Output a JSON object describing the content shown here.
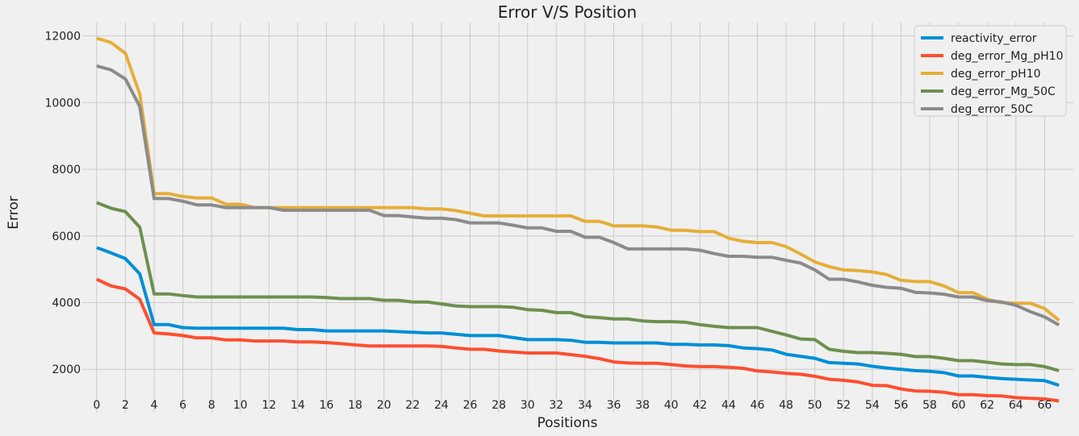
{
  "chart_data": {
    "type": "line",
    "title": "Error V/S Position",
    "xlabel": "Positions",
    "ylabel": "Error",
    "xlim": [
      -1,
      68
    ],
    "ylim": [
      700,
      12400
    ],
    "xticks": [
      0,
      2,
      4,
      6,
      8,
      10,
      12,
      14,
      16,
      18,
      20,
      22,
      24,
      26,
      28,
      30,
      32,
      34,
      36,
      38,
      40,
      42,
      44,
      46,
      48,
      50,
      52,
      54,
      56,
      58,
      60,
      62,
      64,
      66
    ],
    "yticks": [
      2000,
      4000,
      6000,
      8000,
      10000,
      12000
    ],
    "grid": true,
    "legend_position": "top-right",
    "x": [
      0,
      1,
      2,
      3,
      4,
      5,
      6,
      7,
      8,
      9,
      10,
      11,
      12,
      13,
      14,
      15,
      16,
      17,
      18,
      19,
      20,
      21,
      22,
      23,
      24,
      25,
      26,
      27,
      28,
      29,
      30,
      31,
      32,
      33,
      34,
      35,
      36,
      37,
      38,
      39,
      40,
      41,
      42,
      43,
      44,
      45,
      46,
      47,
      48,
      49,
      50,
      51,
      52,
      53,
      54,
      55,
      56,
      57,
      58,
      59,
      60,
      61,
      62,
      63,
      64,
      65,
      66,
      67
    ],
    "series": [
      {
        "name": "reactivity_error",
        "color": "#008fd5",
        "values": [
          5650,
          5490,
          5320,
          4860,
          3340,
          3340,
          3250,
          3230,
          3230,
          3230,
          3230,
          3230,
          3230,
          3230,
          3190,
          3190,
          3150,
          3150,
          3150,
          3150,
          3150,
          3130,
          3110,
          3090,
          3090,
          3050,
          3010,
          3010,
          3010,
          2950,
          2890,
          2890,
          2890,
          2870,
          2810,
          2810,
          2790,
          2790,
          2790,
          2790,
          2750,
          2750,
          2730,
          2730,
          2710,
          2640,
          2620,
          2580,
          2450,
          2390,
          2330,
          2200,
          2180,
          2160,
          2090,
          2040,
          2000,
          1960,
          1940,
          1900,
          1800,
          1800,
          1760,
          1720,
          1700,
          1680,
          1660,
          1520
        ]
      },
      {
        "name": "deg_error_Mg_pH10",
        "color": "#fc4f30",
        "values": [
          4700,
          4500,
          4410,
          4100,
          3090,
          3060,
          3010,
          2940,
          2940,
          2880,
          2880,
          2850,
          2850,
          2850,
          2820,
          2820,
          2800,
          2770,
          2730,
          2700,
          2700,
          2700,
          2700,
          2700,
          2690,
          2640,
          2600,
          2600,
          2550,
          2520,
          2490,
          2490,
          2490,
          2440,
          2390,
          2320,
          2220,
          2190,
          2180,
          2180,
          2140,
          2100,
          2080,
          2080,
          2060,
          2030,
          1950,
          1920,
          1880,
          1850,
          1790,
          1700,
          1670,
          1620,
          1520,
          1510,
          1410,
          1350,
          1340,
          1310,
          1240,
          1240,
          1210,
          1200,
          1150,
          1130,
          1110,
          1050
        ]
      },
      {
        "name": "deg_error_pH10",
        "color": "#e5ae38",
        "values": [
          11930,
          11800,
          11480,
          10250,
          7270,
          7270,
          7180,
          7140,
          7140,
          6950,
          6950,
          6850,
          6850,
          6850,
          6850,
          6850,
          6850,
          6850,
          6850,
          6850,
          6850,
          6850,
          6850,
          6810,
          6810,
          6760,
          6680,
          6600,
          6600,
          6600,
          6600,
          6600,
          6600,
          6600,
          6440,
          6440,
          6300,
          6300,
          6300,
          6270,
          6170,
          6170,
          6130,
          6130,
          5930,
          5840,
          5800,
          5800,
          5680,
          5460,
          5220,
          5080,
          4980,
          4960,
          4920,
          4840,
          4670,
          4630,
          4630,
          4500,
          4300,
          4300,
          4100,
          4000,
          3980,
          3980,
          3820,
          3470
        ]
      },
      {
        "name": "deg_error_Mg_50C",
        "color": "#6d904f",
        "values": [
          7000,
          6830,
          6730,
          6260,
          4260,
          4260,
          4210,
          4170,
          4170,
          4170,
          4170,
          4170,
          4170,
          4170,
          4170,
          4170,
          4150,
          4120,
          4120,
          4120,
          4070,
          4070,
          4020,
          4020,
          3960,
          3900,
          3880,
          3880,
          3880,
          3860,
          3790,
          3770,
          3700,
          3700,
          3580,
          3550,
          3510,
          3510,
          3450,
          3430,
          3430,
          3410,
          3340,
          3290,
          3250,
          3250,
          3250,
          3140,
          3030,
          2910,
          2890,
          2600,
          2540,
          2500,
          2500,
          2480,
          2450,
          2380,
          2380,
          2330,
          2260,
          2260,
          2210,
          2160,
          2140,
          2140,
          2080,
          1960
        ]
      },
      {
        "name": "deg_error_50C",
        "color": "#8b8b8b",
        "values": [
          11100,
          10980,
          10710,
          9880,
          7120,
          7120,
          7040,
          6930,
          6930,
          6850,
          6850,
          6850,
          6850,
          6770,
          6770,
          6770,
          6770,
          6770,
          6770,
          6770,
          6610,
          6610,
          6570,
          6530,
          6530,
          6490,
          6390,
          6390,
          6390,
          6320,
          6240,
          6240,
          6140,
          6140,
          5960,
          5960,
          5800,
          5610,
          5610,
          5610,
          5610,
          5610,
          5570,
          5470,
          5390,
          5390,
          5360,
          5360,
          5270,
          5190,
          4980,
          4700,
          4700,
          4620,
          4520,
          4460,
          4430,
          4310,
          4290,
          4250,
          4170,
          4170,
          4060,
          4020,
          3920,
          3730,
          3570,
          3330
        ]
      }
    ]
  }
}
